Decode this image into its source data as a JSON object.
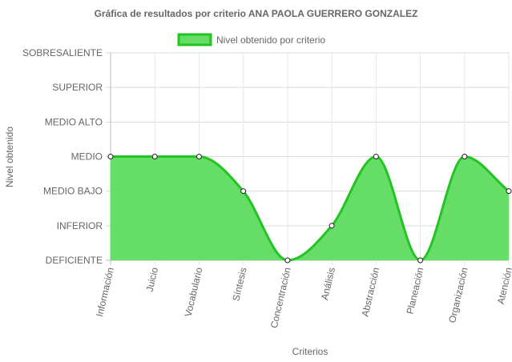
{
  "chart_data": {
    "type": "area",
    "title": "Gráfica de resultados por criterio ANA PAOLA GUERRERO GONZALEZ",
    "xlabel": "Criterios",
    "ylabel": "Nivel obtenido",
    "y_levels": [
      "DEFICIENTE",
      "INFERIOR",
      "MEDIO BAJO",
      "MEDIO",
      "MEDIO ALTO",
      "SUPERIOR",
      "SOBRESALIENTE"
    ],
    "ylim": [
      0,
      6
    ],
    "categories": [
      "Información",
      "Juicio",
      "Vocabulario",
      "Síntesis",
      "Concentración",
      "Análisis",
      "Abstracción",
      "Planeación",
      "Organización",
      "Atención"
    ],
    "series": [
      {
        "name": "Nivel obtenido por criterio",
        "values": [
          3,
          3,
          3,
          2,
          0,
          1,
          3,
          0,
          3,
          2
        ]
      }
    ],
    "legend_position": "top",
    "grid": true,
    "fill_color": "#66dd66",
    "line_color": "#22c422"
  }
}
